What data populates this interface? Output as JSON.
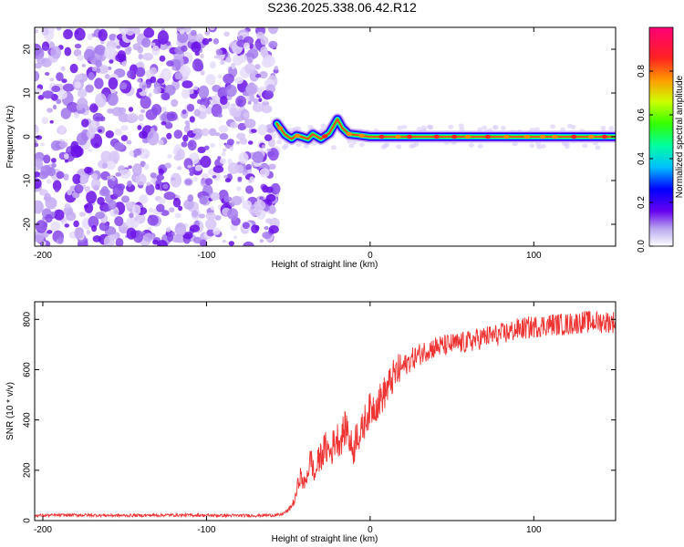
{
  "figure": {
    "title": "S236.2025.338.06.42.R12"
  },
  "chart_data": [
    {
      "type": "heatmap",
      "xlabel": "Height of straight line (km)",
      "ylabel": "Frequency (Hz)",
      "xlim": [
        -205,
        150
      ],
      "ylim": [
        -25,
        25
      ],
      "xticks": [
        -200,
        -100,
        0,
        100
      ],
      "yticks": [
        -20,
        -10,
        0,
        10,
        20
      ],
      "colorbar": {
        "label": "Normalized spectral amplitude",
        "range": [
          0.0,
          1.0
        ],
        "ticks": [
          "0.0",
          "0.2",
          "0.4",
          "0.6",
          "0.8"
        ]
      },
      "noise_region_km": [
        -205,
        -57
      ],
      "ridge": {
        "x_km": [
          -57,
          -52,
          -48,
          -45,
          -42,
          -38,
          -35,
          -30,
          -25,
          -20,
          -17,
          -13,
          -8,
          0,
          20,
          60,
          100,
          150
        ],
        "freq_hz": [
          3,
          0.5,
          -0.5,
          0.3,
          0,
          -0.5,
          0.6,
          -0.5,
          0.8,
          4,
          2,
          0.6,
          0.4,
          0,
          0,
          0,
          0,
          0
        ]
      }
    },
    {
      "type": "line",
      "xlabel": "Height of straight line (km)",
      "ylabel": "SNR (10 * v/v)",
      "xlim": [
        -205,
        150
      ],
      "ylim": [
        0,
        870
      ],
      "xticks": [
        -200,
        -100,
        0,
        100
      ],
      "yticks": [
        0,
        200,
        400,
        600,
        800
      ],
      "series": [
        {
          "name": "SNR",
          "color": "#ee3333",
          "x": [
            -205,
            -180,
            -150,
            -120,
            -90,
            -70,
            -55,
            -50,
            -46,
            -43,
            -40,
            -38,
            -36,
            -34,
            -32,
            -30,
            -27,
            -24,
            -21,
            -18,
            -16,
            -14,
            -12,
            -10,
            -8,
            -6,
            -4,
            -2,
            0,
            5,
            10,
            15,
            20,
            25,
            30,
            35,
            40,
            50,
            60,
            70,
            80,
            90,
            100,
            110,
            120,
            130,
            140,
            150
          ],
          "y": [
            20,
            22,
            20,
            22,
            20,
            20,
            22,
            40,
            80,
            180,
            140,
            200,
            250,
            170,
            230,
            260,
            290,
            270,
            330,
            320,
            360,
            370,
            300,
            280,
            360,
            330,
            380,
            420,
            440,
            470,
            520,
            580,
            610,
            640,
            660,
            680,
            690,
            700,
            710,
            730,
            740,
            760,
            770,
            780,
            780,
            790,
            790,
            790
          ]
        }
      ]
    }
  ]
}
